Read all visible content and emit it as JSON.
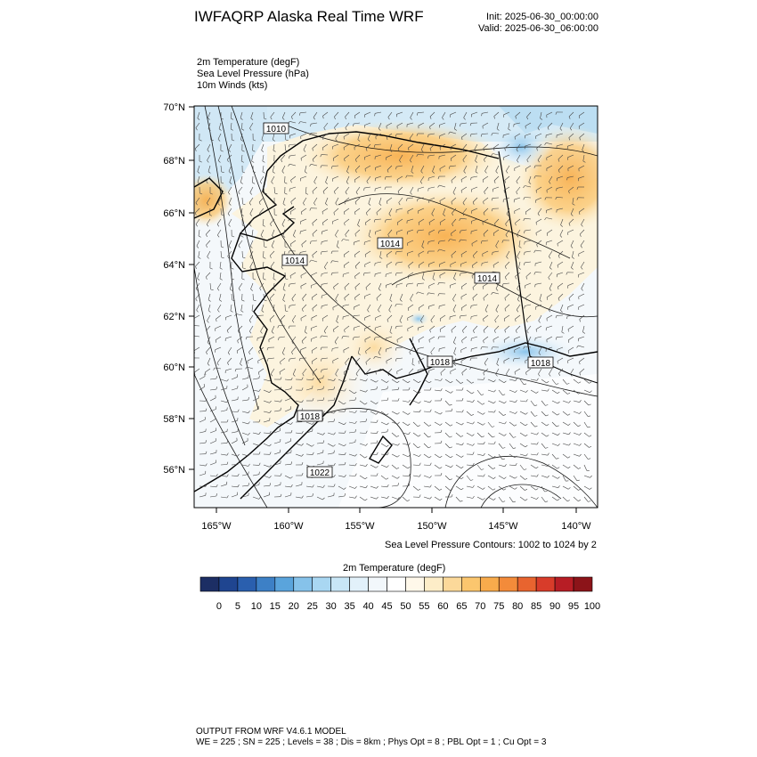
{
  "header": {
    "title": "IWFAQRP Alaska Real Time WRF",
    "init": "Init: 2025-06-30_00:00:00",
    "valid": "Valid: 2025-06-30_06:00:00",
    "fields": [
      "2m Temperature   (degF)",
      "Sea Level Pressure   (hPa)",
      "10m Winds   (kts)"
    ]
  },
  "map": {
    "lat_labels": [
      "70°N",
      "68°N",
      "66°N",
      "64°N",
      "62°N",
      "60°N",
      "58°N",
      "56°N"
    ],
    "lon_labels": [
      "165°W",
      "160°W",
      "155°W",
      "150°W",
      "145°W",
      "140°W"
    ],
    "pressure_labels": [
      "1010",
      "1014",
      "1014",
      "1014",
      "1018",
      "1018",
      "1018",
      "1022"
    ],
    "contours_note": "Sea Level Pressure Contours: 1002 to 1024 by 2"
  },
  "colorbar": {
    "label": "2m Temperature  (degF)",
    "ticks": [
      "0",
      "5",
      "10",
      "15",
      "20",
      "25",
      "30",
      "35",
      "40",
      "45",
      "50",
      "55",
      "60",
      "65",
      "70",
      "75",
      "80",
      "85",
      "90",
      "95",
      "100"
    ],
    "colors": [
      "#1c2e64",
      "#1f4590",
      "#2a5fae",
      "#3d80c6",
      "#5aa4dc",
      "#86c2ea",
      "#a9d7f2",
      "#c8e6f6",
      "#e2f1fa",
      "#f2f7fb",
      "#ffffff",
      "#fff8ea",
      "#fdedc8",
      "#fcd99a",
      "#fbc66e",
      "#f8ab4c",
      "#f38b3a",
      "#e8642f",
      "#d83c2a",
      "#b71d25",
      "#8c1419"
    ]
  },
  "footer": {
    "line1": "OUTPUT FROM WRF V4.6.1 MODEL",
    "line2": "WE = 225 ; SN = 225 ; Levels = 38 ; Dis = 8km ; Phys Opt = 8 ; PBL Opt = 1 ; Cu Opt = 3"
  }
}
